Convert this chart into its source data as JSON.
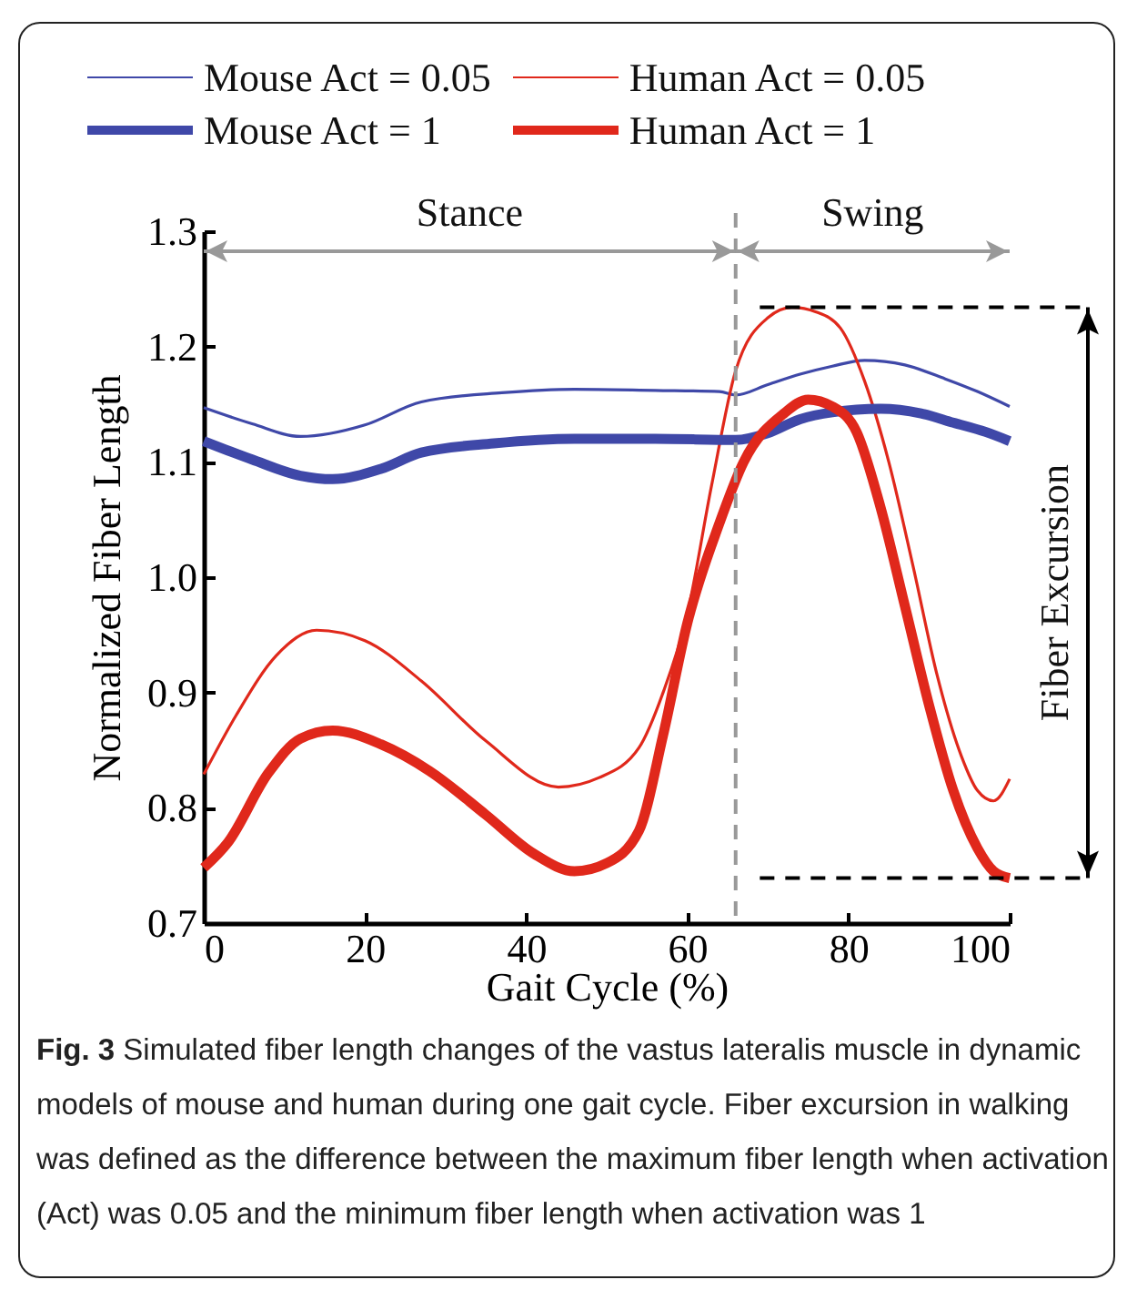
{
  "chart_data": {
    "type": "line",
    "xlabel": "Gait Cycle (%)",
    "ylabel": "Normalized Fiber Length",
    "xlim": [
      0,
      100
    ],
    "xticks": [
      0,
      20,
      40,
      60,
      80,
      100
    ],
    "ylim": [
      0.7,
      1.3
    ],
    "yticks": [
      0.7,
      0.8,
      0.9,
      {
        "value": 1.0,
        "label": "1.0"
      },
      1.1,
      1.2,
      1.3
    ],
    "legend": "top",
    "series": [
      {
        "name": "Mouse Act = 0.05",
        "color": "#3f48a8",
        "x": [
          0,
          6,
          12,
          20,
          27,
          37,
          46,
          56,
          64,
          66,
          70,
          74,
          78,
          82,
          87,
          92,
          96,
          100
        ],
        "values": [
          1.147,
          1.133,
          1.122,
          1.132,
          1.152,
          1.16,
          1.163,
          1.162,
          1.161,
          1.158,
          1.167,
          1.176,
          1.183,
          1.188,
          1.184,
          1.172,
          1.161,
          1.148
        ]
      },
      {
        "name": "Human Act = 0.05",
        "color": "#e0281b",
        "x": [
          0,
          4,
          9,
          14,
          20,
          27,
          35,
          44,
          49,
          54,
          57,
          60,
          63,
          66,
          70,
          73,
          76,
          79,
          82,
          85,
          88,
          91,
          94,
          96,
          98,
          100
        ],
        "values": [
          0.829,
          0.88,
          0.932,
          0.954,
          0.945,
          0.91,
          0.858,
          0.818,
          0.826,
          0.852,
          0.9,
          0.968,
          1.079,
          1.179,
          1.225,
          1.234,
          1.23,
          1.216,
          1.17,
          1.1,
          1.01,
          0.915,
          0.845,
          0.815,
          0.806,
          0.825
        ]
      },
      {
        "name": "Mouse Act = 1",
        "color": "#3f48a8",
        "x": [
          0,
          6,
          12,
          16,
          22,
          27,
          36,
          46,
          56,
          66,
          70,
          74,
          78,
          84,
          89,
          93,
          97,
          100
        ],
        "values": [
          1.118,
          1.102,
          1.088,
          1.085,
          1.094,
          1.108,
          1.116,
          1.12,
          1.12,
          1.119,
          1.125,
          1.137,
          1.143,
          1.146,
          1.142,
          1.134,
          1.126,
          1.118
        ]
      },
      {
        "name": "Human Act = 1",
        "color": "#e0281b",
        "x": [
          0,
          3,
          8,
          12,
          16,
          22,
          28,
          35,
          41,
          46,
          50,
          54,
          57,
          60,
          64,
          67,
          72,
          75,
          78,
          81,
          84,
          87,
          90,
          93,
          96,
          98,
          100
        ],
        "values": [
          0.748,
          0.77,
          0.83,
          0.86,
          0.867,
          0.855,
          0.832,
          0.794,
          0.76,
          0.745,
          0.752,
          0.78,
          0.863,
          0.96,
          1.047,
          1.1,
          1.142,
          1.154,
          1.148,
          1.126,
          1.06,
          0.975,
          0.889,
          0.815,
          0.765,
          0.745,
          0.739
        ]
      }
    ],
    "ref_lines": [
      {
        "axis": "x",
        "value": 66,
        "label": null,
        "color": "#999999",
        "line_style": "dashed"
      },
      {
        "axis": "y",
        "value": 1.234,
        "label": null,
        "color": "#000000",
        "line_style": "dashed"
      },
      {
        "axis": "y",
        "value": 0.739,
        "label": null,
        "color": "#000000",
        "line_style": "dashed"
      }
    ],
    "annotations": [
      "Fiber Excursion",
      "Stance",
      "Swing",
      "Fig. 3",
      "Simulated fiber length changes of the vastus lateralis muscle in dynamic models of mouse and human during one gait cycle. Fiber excursion in walking was defined as the difference between the maximum fiber length when activation (Act) was 0.05 and the minimum fiber length when activation was 1"
    ]
  }
}
